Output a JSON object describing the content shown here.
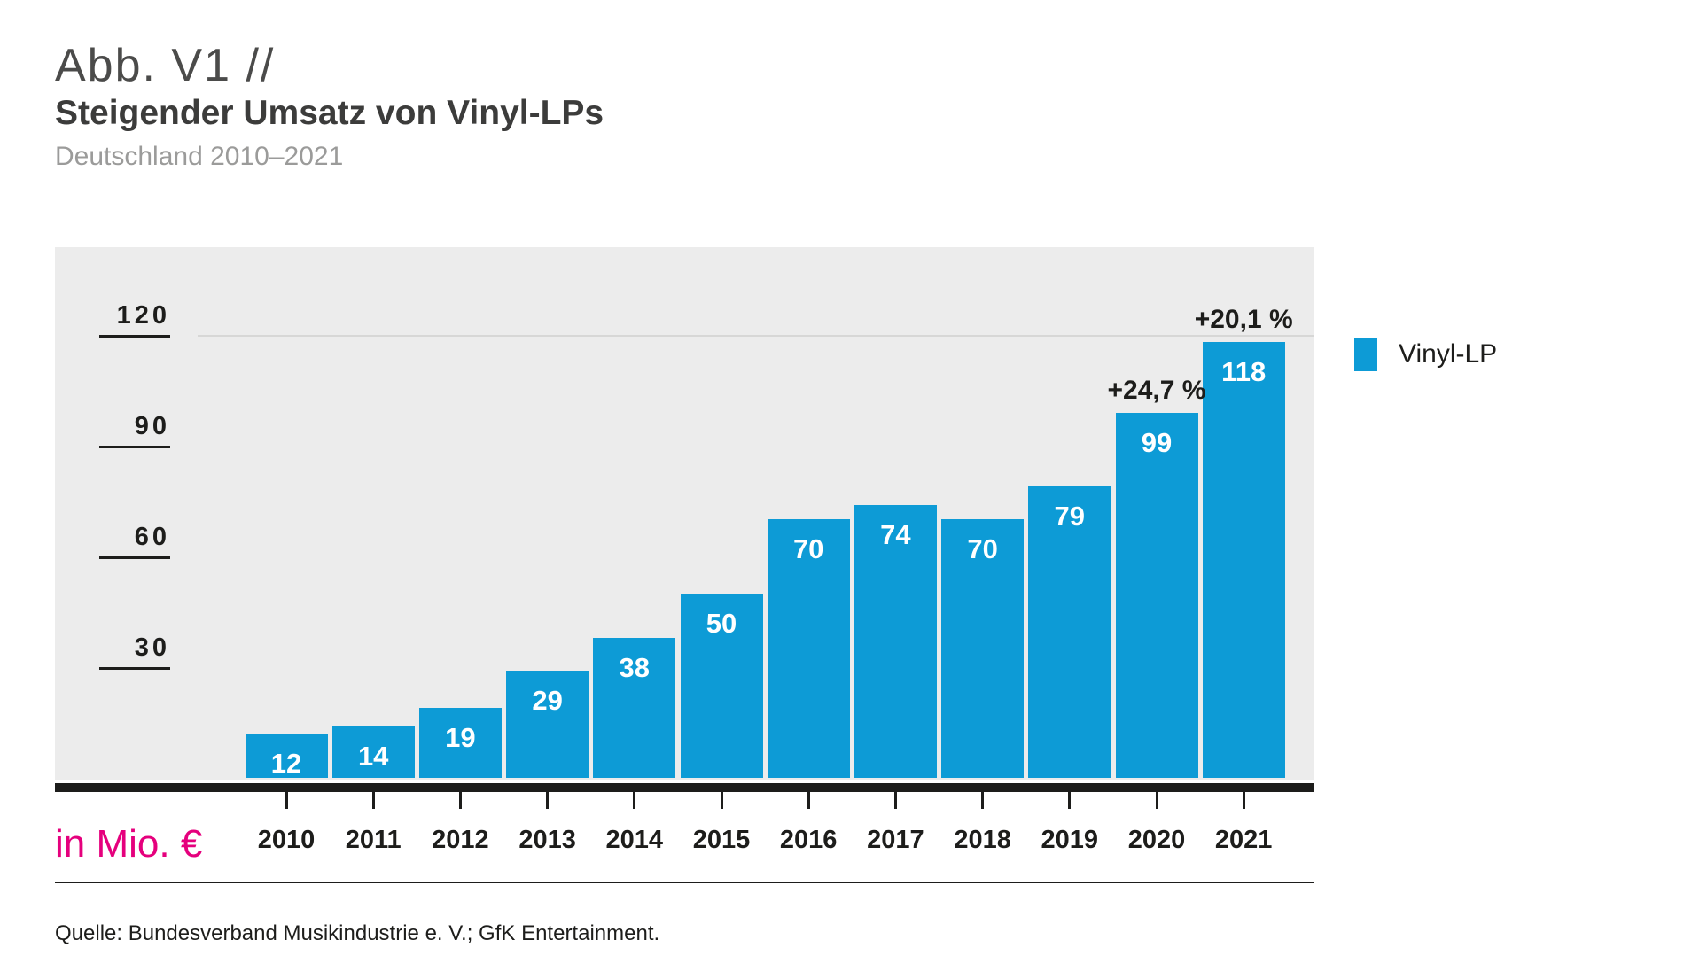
{
  "header": {
    "figure_label": "Abb. V1 //",
    "title": "Steigender Umsatz von Vinyl-LPs",
    "subtitle": "Deutschland 2010–2021"
  },
  "chart_data": {
    "type": "bar",
    "title": "Steigender Umsatz von Vinyl-LPs",
    "subtitle": "Deutschland 2010–2021",
    "categories": [
      "2010",
      "2011",
      "2012",
      "2013",
      "2014",
      "2015",
      "2016",
      "2017",
      "2018",
      "2019",
      "2020",
      "2021"
    ],
    "values": [
      12,
      14,
      19,
      29,
      38,
      50,
      70,
      74,
      70,
      79,
      99,
      118
    ],
    "series_name": "Vinyl-LP",
    "unit_label": "in Mio. €",
    "ylabel": "in Mio. €",
    "yticks": [
      30,
      60,
      90,
      120
    ],
    "ylim": [
      0,
      126
    ],
    "gridline_at": 120,
    "grid": "single line at 120 only",
    "legend_position": "right",
    "annotations": [
      {
        "year": "2020",
        "text": "+24,7 %"
      },
      {
        "year": "2021",
        "text": "+20,1 %"
      }
    ],
    "bar_color": "#0d9bd6"
  },
  "legend": {
    "label": "Vinyl-LP",
    "swatch_color": "#0d9bd6"
  },
  "footer": {
    "unit_label": "in Mio. €",
    "source": "Quelle: Bundesverband Musikindustrie e. V.; GfK Entertainment."
  },
  "colors": {
    "bar": "#0d9bd6",
    "plot_background": "#ececec",
    "gridline": "#d7d7d6",
    "axis": "#1d1d1b",
    "accent_magenta": "#e5007d",
    "title_dark": "#3c3c3b",
    "subtitle_gray": "#9b9b9a"
  }
}
